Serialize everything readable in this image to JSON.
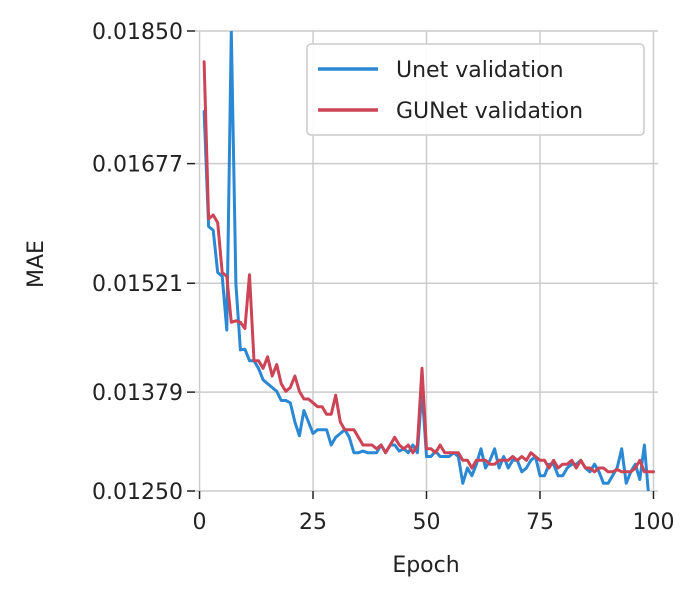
{
  "chart_data": {
    "type": "line",
    "title": "",
    "xlabel": "Epoch",
    "ylabel": "MAE",
    "xlim": [
      -1,
      101
    ],
    "ylim": [
      0.0125,
      0.0185
    ],
    "xticks": [
      0,
      25,
      50,
      75,
      100
    ],
    "xtick_labels": [
      "0",
      "25",
      "50",
      "75",
      "100"
    ],
    "yticks": [
      0.0125,
      0.01379,
      0.01521,
      0.01677,
      0.0185
    ],
    "ytick_labels": [
      "0.01250",
      "0.01379",
      "0.01521",
      "0.01677",
      "0.01850"
    ],
    "grid": true,
    "legend_position": "top-right",
    "colors": {
      "unet": "#2a88d4",
      "gunet": "#cc4455",
      "grid": "#cccccc"
    },
    "series": [
      {
        "name": "Unet validation",
        "x": [
          1,
          2,
          3,
          4,
          5,
          6,
          7,
          8,
          9,
          10,
          11,
          12,
          13,
          14,
          15,
          16,
          17,
          18,
          19,
          20,
          21,
          22,
          23,
          24,
          25,
          26,
          27,
          28,
          29,
          30,
          31,
          32,
          33,
          34,
          35,
          36,
          37,
          38,
          39,
          40,
          41,
          42,
          43,
          44,
          45,
          46,
          47,
          48,
          49,
          50,
          51,
          52,
          53,
          54,
          55,
          56,
          57,
          58,
          59,
          60,
          61,
          62,
          63,
          64,
          65,
          66,
          67,
          68,
          69,
          70,
          71,
          72,
          73,
          74,
          75,
          76,
          77,
          78,
          79,
          80,
          81,
          82,
          83,
          84,
          85,
          86,
          87,
          88,
          89,
          90,
          91,
          92,
          93,
          94,
          95,
          96,
          97,
          98,
          99,
          100
        ],
        "values": [
          0.01745,
          0.01595,
          0.0159,
          0.01535,
          0.0153,
          0.0146,
          0.0185,
          0.0152,
          0.01434,
          0.01435,
          0.0142,
          0.0142,
          0.0141,
          0.01395,
          0.0139,
          0.01385,
          0.0138,
          0.01368,
          0.01368,
          0.01365,
          0.0134,
          0.01322,
          0.01355,
          0.0134,
          0.01325,
          0.0133,
          0.0133,
          0.0133,
          0.0131,
          0.0132,
          0.01325,
          0.0133,
          0.0132,
          0.013,
          0.013,
          0.01302,
          0.013,
          0.013,
          0.013,
          0.0131,
          0.013,
          0.0131,
          0.0131,
          0.01302,
          0.01305,
          0.013,
          0.0131,
          0.013,
          0.01382,
          0.01295,
          0.01295,
          0.01302,
          0.01295,
          0.01295,
          0.01295,
          0.013,
          0.01295,
          0.0126,
          0.0128,
          0.0127,
          0.01285,
          0.01305,
          0.0128,
          0.0129,
          0.01305,
          0.0128,
          0.01295,
          0.0128,
          0.0129,
          0.0129,
          0.01275,
          0.0128,
          0.0129,
          0.01295,
          0.0127,
          0.0127,
          0.01285,
          0.01285,
          0.0127,
          0.0127,
          0.0128,
          0.01285,
          0.01285,
          0.0129,
          0.0128,
          0.01275,
          0.01285,
          0.01275,
          0.0126,
          0.0126,
          0.0127,
          0.0128,
          0.01305,
          0.0126,
          0.01275,
          0.01285,
          0.01265,
          0.0131,
          0.0124,
          0.01245
        ]
      },
      {
        "name": "GUNet validation",
        "x": [
          1,
          2,
          3,
          4,
          5,
          6,
          7,
          8,
          9,
          10,
          11,
          12,
          13,
          14,
          15,
          16,
          17,
          18,
          19,
          20,
          21,
          22,
          23,
          24,
          25,
          26,
          27,
          28,
          29,
          30,
          31,
          32,
          33,
          34,
          35,
          36,
          37,
          38,
          39,
          40,
          41,
          42,
          43,
          44,
          45,
          46,
          47,
          48,
          49,
          50,
          51,
          52,
          53,
          54,
          55,
          56,
          57,
          58,
          59,
          60,
          61,
          62,
          63,
          64,
          65,
          66,
          67,
          68,
          69,
          70,
          71,
          72,
          73,
          74,
          75,
          76,
          77,
          78,
          79,
          80,
          81,
          82,
          83,
          84,
          85,
          86,
          87,
          88,
          89,
          90,
          91,
          92,
          93,
          94,
          95,
          96,
          97,
          98,
          99,
          100
        ],
        "values": [
          0.0181,
          0.01605,
          0.0161,
          0.016,
          0.01535,
          0.0153,
          0.0147,
          0.01472,
          0.0147,
          0.01462,
          0.01532,
          0.0142,
          0.0142,
          0.0141,
          0.01425,
          0.014,
          0.01415,
          0.0139,
          0.0138,
          0.01385,
          0.014,
          0.0138,
          0.0137,
          0.0137,
          0.01365,
          0.0136,
          0.0136,
          0.0135,
          0.0135,
          0.01375,
          0.0134,
          0.0133,
          0.0133,
          0.0133,
          0.0132,
          0.0131,
          0.0131,
          0.0131,
          0.01305,
          0.0131,
          0.013,
          0.0131,
          0.0132,
          0.0131,
          0.01305,
          0.0131,
          0.013,
          0.0131,
          0.0141,
          0.01305,
          0.01305,
          0.013,
          0.0131,
          0.013,
          0.013,
          0.013,
          0.013,
          0.0129,
          0.0129,
          0.0128,
          0.0129,
          0.0129,
          0.0129,
          0.01285,
          0.01285,
          0.0129,
          0.0129,
          0.0129,
          0.01295,
          0.0129,
          0.01295,
          0.0129,
          0.013,
          0.01295,
          0.0129,
          0.0129,
          0.0128,
          0.0129,
          0.0128,
          0.01285,
          0.01285,
          0.0129,
          0.0128,
          0.0129,
          0.0128,
          0.0128,
          0.01275,
          0.0128,
          0.0128,
          0.01275,
          0.01275,
          0.01278,
          0.01275,
          0.01275,
          0.01275,
          0.0128,
          0.0129,
          0.01275,
          0.01275,
          0.01275
        ]
      }
    ]
  }
}
